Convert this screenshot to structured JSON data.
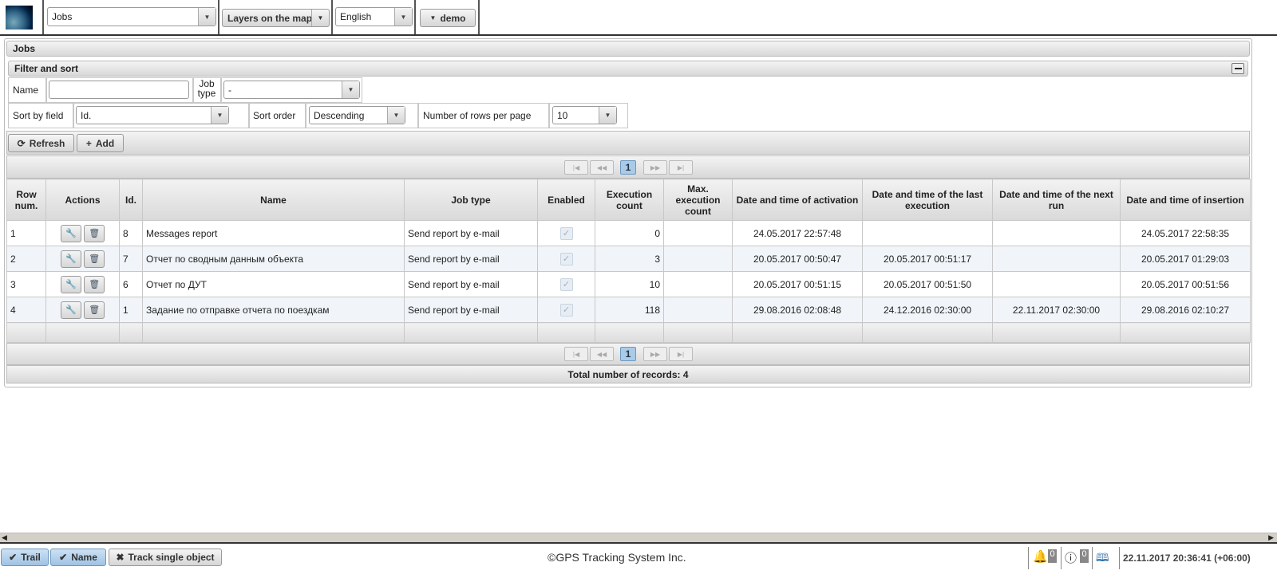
{
  "topbar": {
    "module_select": "Jobs",
    "layers_label": "Layers on the map",
    "language": "English",
    "user": "demo"
  },
  "panel": {
    "title": "Jobs",
    "filter_title": "Filter and sort",
    "filter": {
      "name_label": "Name",
      "name_value": "",
      "job_type_label": "Job type",
      "job_type_value": "-",
      "sort_field_label": "Sort by field",
      "sort_field_value": "Id.",
      "sort_order_label": "Sort order",
      "sort_order_value": "Descending",
      "rows_label": "Number of rows per page",
      "rows_value": "10"
    },
    "toolbar": {
      "refresh": "Refresh",
      "add": "Add"
    },
    "pager": {
      "current_page": "1"
    },
    "columns": [
      "Row num.",
      "Actions",
      "Id.",
      "Name",
      "Job type",
      "Enabled",
      "Execution count",
      "Max. execution count",
      "Date and time of activation",
      "Date and time of the last execution",
      "Date and time of the next run",
      "Date and time of insertion"
    ],
    "rows": [
      {
        "num": "1",
        "id": "8",
        "name": "Messages report",
        "type": "Send report by e-mail",
        "enabled": true,
        "exec": "0",
        "max": "",
        "activation": "24.05.2017 22:57:48",
        "last": "",
        "next": "",
        "inserted": "24.05.2017 22:58:35"
      },
      {
        "num": "2",
        "id": "7",
        "name": "Отчет по сводным данным объекта",
        "type": "Send report by e-mail",
        "enabled": true,
        "exec": "3",
        "max": "",
        "activation": "20.05.2017 00:50:47",
        "last": "20.05.2017 00:51:17",
        "next": "",
        "inserted": "20.05.2017 01:29:03"
      },
      {
        "num": "3",
        "id": "6",
        "name": "Отчет по ДУТ",
        "type": "Send report by e-mail",
        "enabled": true,
        "exec": "10",
        "max": "",
        "activation": "20.05.2017 00:51:15",
        "last": "20.05.2017 00:51:50",
        "next": "",
        "inserted": "20.05.2017 00:51:56"
      },
      {
        "num": "4",
        "id": "1",
        "name": "Задание по отправке отчета по поездкам",
        "type": "Send report by e-mail",
        "enabled": true,
        "exec": "118",
        "max": "",
        "activation": "29.08.2016 02:08:48",
        "last": "24.12.2016 02:30:00",
        "next": "22.11.2017 02:30:00",
        "inserted": "29.08.2016 02:10:27"
      }
    ],
    "total": "Total number of records: 4"
  },
  "bottombar": {
    "trail": "Trail",
    "name": "Name",
    "track_single": "Track single object",
    "copyright": "©GPS Tracking System Inc.",
    "alerts_count": "0",
    "info_count": "0",
    "datetime": "22.11.2017 20:36:41 (+06:00)"
  }
}
